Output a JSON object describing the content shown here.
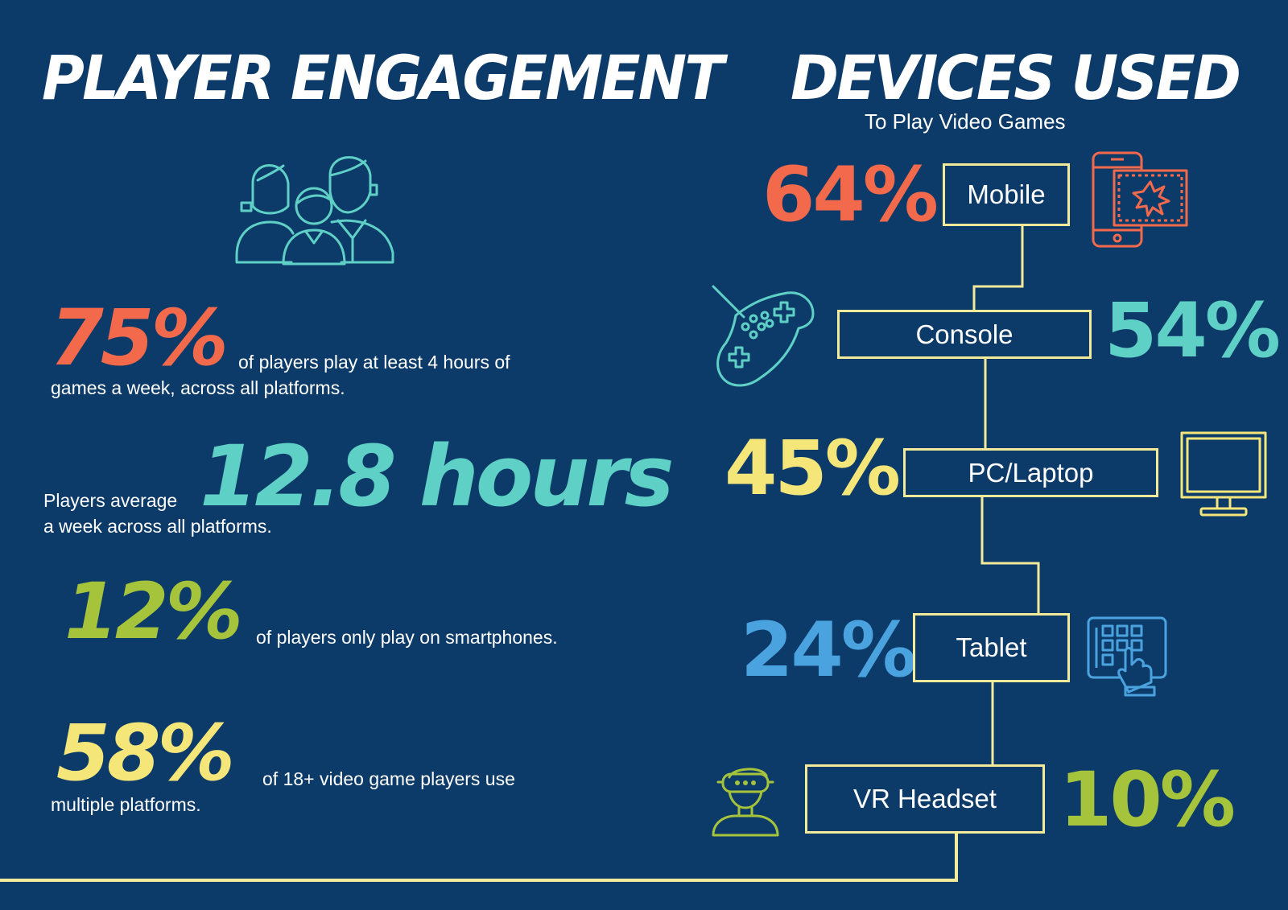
{
  "left": {
    "title": "PLAYER ENGAGEMENT",
    "stats": [
      {
        "value": "75%",
        "line1": "of players play at least 4 hours of",
        "line2": "games a week, across all platforms."
      },
      {
        "value": "12.8 hours",
        "line1": "Players average",
        "line2": "a week across all platforms."
      },
      {
        "value": "12%",
        "line1": "of players only play on smartphones."
      },
      {
        "value": "58%",
        "line1": "of 18+ video game players use",
        "line2": "multiple platforms."
      }
    ]
  },
  "right": {
    "title": "DEVICES USED",
    "subtitle": "To Play Video Games",
    "devices": [
      {
        "label": "Mobile",
        "percent": "64%",
        "color": "#f26a4b",
        "icon": "mobile-game-icon"
      },
      {
        "label": "Console",
        "percent": "54%",
        "color": "#5fd0c6",
        "icon": "gamepad-icon"
      },
      {
        "label": "PC/Laptop",
        "percent": "45%",
        "color": "#f5e67a",
        "icon": "monitor-icon"
      },
      {
        "label": "Tablet",
        "percent": "24%",
        "color": "#4aa3df",
        "icon": "tablet-touch-icon"
      },
      {
        "label": "VR Headset",
        "percent": "10%",
        "color": "#a6c43b",
        "icon": "vr-headset-icon"
      }
    ]
  },
  "colors": {
    "background": "#0d3b69",
    "line": "#f3eb9a",
    "orange": "#f26a4b",
    "teal": "#5fd0c6",
    "green": "#a6c43b",
    "yellow": "#f5e67a",
    "blue": "#4aa3df"
  }
}
